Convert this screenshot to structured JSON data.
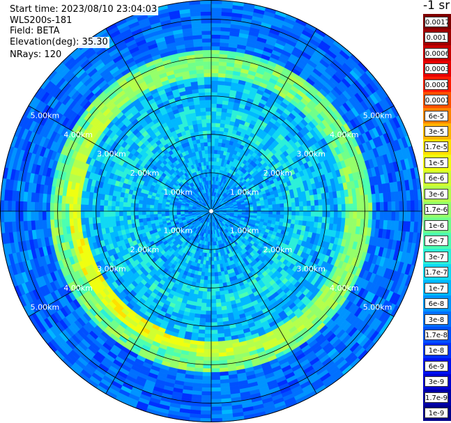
{
  "info": {
    "start_time": "Start time: 2023/08/10 23:04:03",
    "instrument": "WLS200s-181",
    "field": "Field: BETA",
    "elevation": "Elevation(deg): 35.30",
    "nrays": "NRays: 120"
  },
  "colorbar": {
    "unit": "-1 sr",
    "levels": [
      {
        "label": "0.0017",
        "color": "#7f0000"
      },
      {
        "label": "0.001",
        "color": "#a00000"
      },
      {
        "label": "0.0006",
        "color": "#c80000"
      },
      {
        "label": "0.0003",
        "color": "#e80000"
      },
      {
        "label": "0.00017",
        "color": "#ff1a00"
      },
      {
        "label": "0.0001",
        "color": "#ff5000"
      },
      {
        "label": "6e-5",
        "color": "#ff8400"
      },
      {
        "label": "3e-5",
        "color": "#ffb400"
      },
      {
        "label": "1.7e-5",
        "color": "#ffe000"
      },
      {
        "label": "1e-5",
        "color": "#f0ff10"
      },
      {
        "label": "6e-6",
        "color": "#d0ff30"
      },
      {
        "label": "3e-6",
        "color": "#b4ff4c"
      },
      {
        "label": "1.7e-6",
        "color": "#94ff6a"
      },
      {
        "label": "1e-6",
        "color": "#70ff8a"
      },
      {
        "label": "6e-7",
        "color": "#4cffb0"
      },
      {
        "label": "3e-7",
        "color": "#2cf0d8"
      },
      {
        "label": "1.7e-7",
        "color": "#10d8f4"
      },
      {
        "label": "1e-7",
        "color": "#00b8ff"
      },
      {
        "label": "6e-8",
        "color": "#0094ff"
      },
      {
        "label": "3e-8",
        "color": "#0070ff"
      },
      {
        "label": "1.7e-8",
        "color": "#0050ff"
      },
      {
        "label": "1e-8",
        "color": "#0030ff"
      },
      {
        "label": "6e-9",
        "color": "#0010f0"
      },
      {
        "label": "3e-9",
        "color": "#0000d0"
      },
      {
        "label": "1.7e-9",
        "color": "#0000a8"
      },
      {
        "label": "1e-9",
        "color": "#00008a"
      }
    ]
  },
  "chart_data": {
    "type": "heatmap",
    "projection": "polar",
    "title": "",
    "field": "BETA",
    "elevation_deg": 35.3,
    "n_rays": 120,
    "max_range_km": 5.5,
    "range_rings_km": [
      1.0,
      2.0,
      3.0,
      4.0,
      5.0
    ],
    "radial_lines_deg": [
      0,
      30,
      60,
      90,
      120,
      150,
      180,
      210,
      240,
      270,
      300,
      330
    ],
    "ring_labels": [
      {
        "text": "1.00km",
        "range_km": 1.0,
        "az_deg": 300
      },
      {
        "text": "1.00km",
        "range_km": 1.0,
        "az_deg": 60
      },
      {
        "text": "1.00km",
        "range_km": 1.0,
        "az_deg": 240
      },
      {
        "text": "1.00km",
        "range_km": 1.0,
        "az_deg": 120
      },
      {
        "text": "2.00km",
        "range_km": 2.0,
        "az_deg": 300
      },
      {
        "text": "2.00km",
        "range_km": 2.0,
        "az_deg": 60
      },
      {
        "text": "2.00km",
        "range_km": 2.0,
        "az_deg": 240
      },
      {
        "text": "2.00km",
        "range_km": 2.0,
        "az_deg": 120
      },
      {
        "text": "3.00km",
        "range_km": 3.0,
        "az_deg": 300
      },
      {
        "text": "3.00km",
        "range_km": 3.0,
        "az_deg": 60
      },
      {
        "text": "3.00km",
        "range_km": 3.0,
        "az_deg": 240
      },
      {
        "text": "3.00km",
        "range_km": 3.0,
        "az_deg": 120
      },
      {
        "text": "4.00km",
        "range_km": 4.0,
        "az_deg": 300
      },
      {
        "text": "4.00km",
        "range_km": 4.0,
        "az_deg": 60
      },
      {
        "text": "4.00km",
        "range_km": 4.0,
        "az_deg": 240
      },
      {
        "text": "4.00km",
        "range_km": 4.0,
        "az_deg": 120
      },
      {
        "text": "5.00km",
        "range_km": 5.0,
        "az_deg": 300
      },
      {
        "text": "5.00km",
        "range_km": 5.0,
        "az_deg": 60
      },
      {
        "text": "5.00km",
        "range_km": 5.0,
        "az_deg": 240
      },
      {
        "text": "5.00km",
        "range_km": 5.0,
        "az_deg": 120
      }
    ],
    "range_bands": [
      {
        "from_km": 0.0,
        "to_km": 1.0,
        "beta_sr": 6e-08
      },
      {
        "from_km": 1.0,
        "to_km": 2.0,
        "beta_sr": 1e-07
      },
      {
        "from_km": 2.0,
        "to_km": 2.7,
        "beta_sr": 1.7e-07
      },
      {
        "from_km": 2.7,
        "to_km": 3.5,
        "beta_sr": 1e-07
      },
      {
        "from_km": 3.5,
        "to_km": 4.2,
        "beta_sr": 1e-06
      },
      {
        "from_km": 4.2,
        "to_km": 5.5,
        "beta_sr": 3e-08
      }
    ],
    "features": [
      {
        "name": "aerosol-layer-ring",
        "range_km_min": 3.3,
        "range_km_max": 4.2,
        "beta_sr_max": 1e-05
      }
    ]
  }
}
